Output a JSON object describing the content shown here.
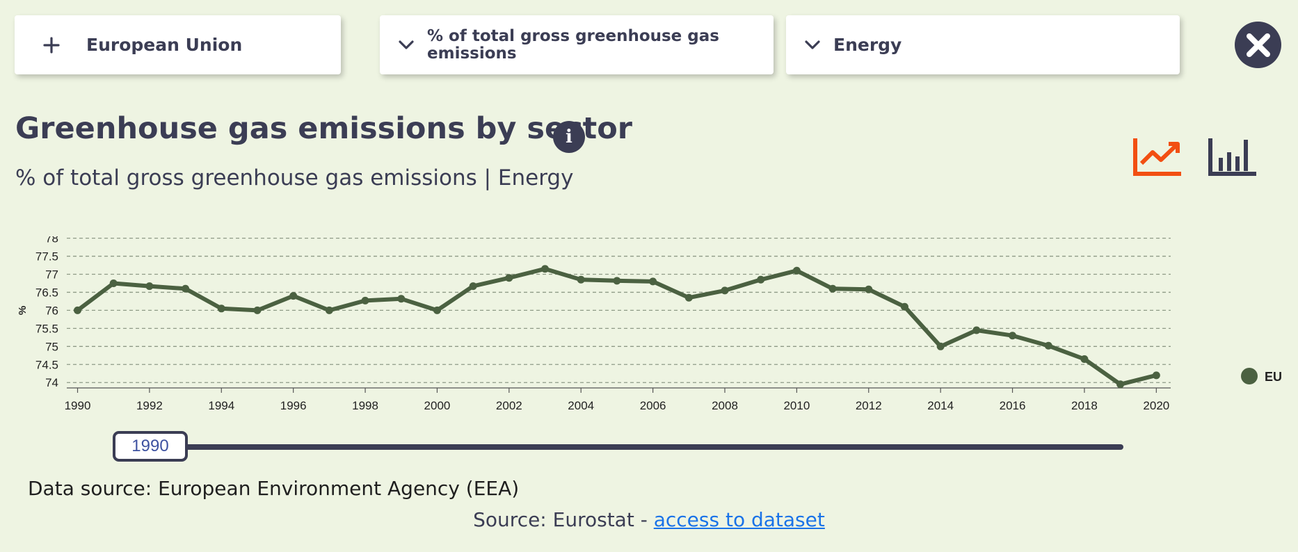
{
  "filters": {
    "region": {
      "label": "European Union",
      "icon": "plus-icon"
    },
    "unit": {
      "label": "% of total gross greenhouse gas emissions",
      "icon": "chevron-down-icon"
    },
    "sector": {
      "label": "Energy",
      "icon": "chevron-down-icon"
    }
  },
  "close_icon": "close-icon",
  "title": "Greenhouse gas emissions by sector",
  "info_icon": "info-icon",
  "subtitle": "% of total gross greenhouse gas emissions | Energy",
  "chart_toggles": {
    "line": "line-chart-icon",
    "bar": "bar-chart-icon",
    "active": "line"
  },
  "colors": {
    "accent": "#f24f12",
    "dark": "#3b3d54",
    "series": "#4b6141",
    "background": "#eef4e2"
  },
  "chart_data": {
    "type": "line",
    "title": "",
    "xlabel": "",
    "ylabel": "%",
    "ylim": [
      73.85,
      78.05
    ],
    "xlim": [
      1989.7,
      2020.4
    ],
    "yticks": [
      "78",
      "77.5",
      "77",
      "76.5",
      "76",
      "75.5",
      "75",
      "74.5",
      "74"
    ],
    "xticks": [
      "1990",
      "1992",
      "1994",
      "1996",
      "1998",
      "2000",
      "2002",
      "2004",
      "2006",
      "2008",
      "2010",
      "2012",
      "2014",
      "2016",
      "2018",
      "2020"
    ],
    "grid": true,
    "legend_position": "right",
    "x": [
      1990,
      1991,
      1992,
      1993,
      1994,
      1995,
      1996,
      1997,
      1998,
      1999,
      2000,
      2001,
      2002,
      2003,
      2004,
      2005,
      2006,
      2007,
      2008,
      2009,
      2010,
      2011,
      2012,
      2013,
      2014,
      2015,
      2016,
      2017,
      2018,
      2019,
      2020
    ],
    "series": [
      {
        "name": "EU",
        "color": "#4b6141",
        "values": [
          76.0,
          76.75,
          76.67,
          76.6,
          76.05,
          76.0,
          76.4,
          76.0,
          76.27,
          76.32,
          76.0,
          76.67,
          76.9,
          77.15,
          76.85,
          76.82,
          76.8,
          76.35,
          76.55,
          76.85,
          77.1,
          76.6,
          76.58,
          76.1,
          75.0,
          75.45,
          75.3,
          75.02,
          74.65,
          73.95,
          74.2
        ]
      }
    ]
  },
  "time_slider": {
    "value": "1990"
  },
  "footer": {
    "data_source": "Data source: European Environment Agency (EEA)",
    "source_prefix": "Source: Eurostat - ",
    "source_link": "access to dataset"
  }
}
